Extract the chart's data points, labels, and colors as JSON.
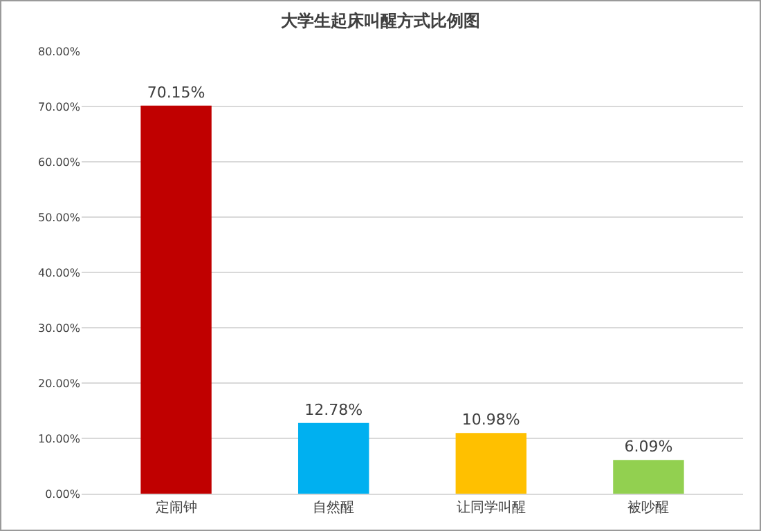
{
  "chart_data": {
    "type": "bar",
    "title": "大学生起床叫醒方式比例图",
    "categories": [
      "定闹钟",
      "自然醒",
      "让同学叫醒",
      "被吵醒"
    ],
    "values": [
      70.15,
      12.78,
      10.98,
      6.09
    ],
    "colors": [
      "#c00000",
      "#00b0f0",
      "#ffc000",
      "#92d050"
    ],
    "value_labels": [
      "70.15%",
      "12.78%",
      "10.98%",
      "6.09%"
    ],
    "ylim": [
      0,
      80
    ],
    "yticks": [
      {
        "value": 0,
        "label": "0.00%"
      },
      {
        "value": 10,
        "label": "10.00%"
      },
      {
        "value": 20,
        "label": "20.00%"
      },
      {
        "value": 30,
        "label": "30.00%"
      },
      {
        "value": 40,
        "label": "40.00%"
      },
      {
        "value": 50,
        "label": "50.00%"
      },
      {
        "value": 60,
        "label": "60.00%"
      },
      {
        "value": 70,
        "label": "70.00%"
      },
      {
        "value": 80,
        "label": "80.00%"
      }
    ],
    "grid": "y"
  }
}
